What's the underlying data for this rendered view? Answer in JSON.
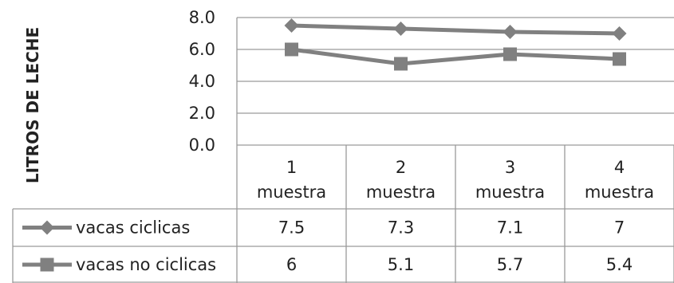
{
  "chart_data": {
    "type": "line",
    "ylabel": "LITROS DE LECHE",
    "xlabel": "",
    "ylim": [
      0,
      8
    ],
    "yticks": [
      "0.0",
      "2.0",
      "4.0",
      "6.0",
      "8.0"
    ],
    "grid": true,
    "categories": [
      [
        "1",
        "muestra"
      ],
      [
        "2",
        "muestra"
      ],
      [
        "3",
        "muestra"
      ],
      [
        "4",
        "muestra"
      ]
    ],
    "series": [
      {
        "name": "vacas ciclicas",
        "marker": "diamond",
        "color": "#808080",
        "values": [
          7.5,
          7.3,
          7.1,
          7
        ],
        "labels": [
          "7.5",
          "7.3",
          "7.1",
          "7"
        ]
      },
      {
        "name": "vacas no ciclicas",
        "marker": "square",
        "color": "#808080",
        "values": [
          6,
          5.1,
          5.7,
          5.4
        ],
        "labels": [
          "6",
          "5.1",
          "5.7",
          "5.4"
        ]
      }
    ]
  }
}
